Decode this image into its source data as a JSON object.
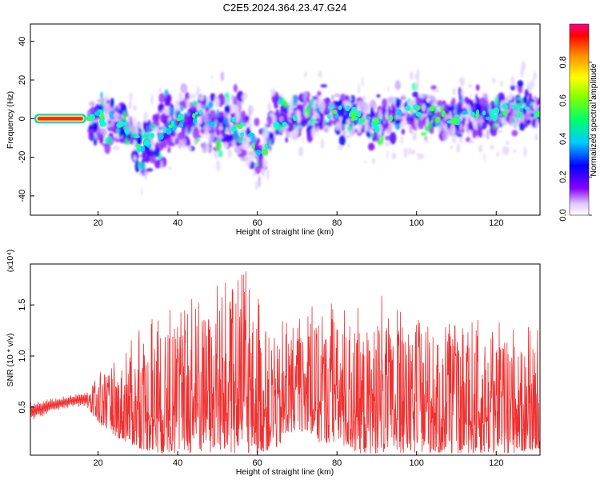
{
  "title": "C2E5.2024.364.23.47.G24",
  "chart_data": [
    {
      "type": "heatmap",
      "xlabel": "Height of straight line (km)",
      "ylabel": "Frequency (Hz)",
      "xlim": [
        3,
        131
      ],
      "ylim": [
        -50,
        49
      ],
      "xticks": [
        20,
        40,
        60,
        80,
        100,
        120
      ],
      "yticks": [
        -40,
        -20,
        0,
        20,
        40
      ],
      "colorbar": {
        "label": "Normalized spectral amplitude",
        "range": [
          0,
          1
        ],
        "ticks": [
          "0.0",
          "0.2",
          "0.4",
          "0.6",
          "0.8"
        ],
        "tick_values": [
          0,
          0.2,
          0.4,
          0.6,
          0.8
        ],
        "colormap": "rainbow (white → violet → blue → cyan → green → yellow → red → magenta)"
      },
      "center_track": [
        [
          4,
          0
        ],
        [
          17,
          0
        ],
        [
          22,
          0
        ],
        [
          26,
          -3
        ],
        [
          29,
          -8
        ],
        [
          31,
          -17
        ],
        [
          35,
          -8
        ],
        [
          40,
          -2
        ],
        [
          46,
          2
        ],
        [
          50,
          -2
        ],
        [
          55,
          -3
        ],
        [
          59,
          -12
        ],
        [
          61,
          -22
        ],
        [
          64,
          -2
        ],
        [
          70,
          2
        ],
        [
          78,
          4
        ],
        [
          84,
          2
        ],
        [
          90,
          -3
        ],
        [
          96,
          3
        ],
        [
          104,
          3
        ],
        [
          110,
          0
        ],
        [
          118,
          2
        ],
        [
          125,
          5
        ],
        [
          131,
          4
        ]
      ]
    },
    {
      "type": "line",
      "xlabel": "Height of straight line (km)",
      "ylabel": "SNR (10 * v/v)",
      "scale_note": "(x10⁴)",
      "xlim": [
        3,
        131
      ],
      "ylim": [
        0.03,
        1.9
      ],
      "xticks": [
        20,
        40,
        60,
        80,
        100,
        120
      ],
      "yticks": [
        "0.5",
        "1.0",
        "1.5"
      ],
      "ytick_values": [
        0.5,
        1.0,
        1.5
      ],
      "color": "#f03030",
      "series": [
        {
          "x": [
            3,
            8,
            13,
            17,
            20,
            25,
            30,
            35,
            40,
            45,
            50,
            55,
            57,
            60,
            65,
            70,
            75,
            80,
            85,
            90,
            95,
            100,
            105,
            110,
            115,
            120,
            125,
            131
          ],
          "y_low": [
            0.35,
            0.45,
            0.5,
            0.5,
            0.35,
            0.2,
            0.1,
            0.05,
            0.05,
            0.05,
            0.05,
            0.05,
            0.05,
            0.05,
            0.1,
            0.3,
            0.15,
            0.15,
            0.05,
            0.05,
            0.05,
            0.05,
            0.05,
            0.05,
            0.05,
            0.05,
            0.05,
            0.1
          ],
          "y_high": [
            0.55,
            0.58,
            0.62,
            0.66,
            0.85,
            1.05,
            1.3,
            1.5,
            1.5,
            1.72,
            1.7,
            1.75,
            1.92,
            1.65,
            1.35,
            1.35,
            1.6,
            1.6,
            1.5,
            1.65,
            1.5,
            1.35,
            1.4,
            1.3,
            1.35,
            1.4,
            1.3,
            1.3
          ]
        }
      ]
    }
  ]
}
